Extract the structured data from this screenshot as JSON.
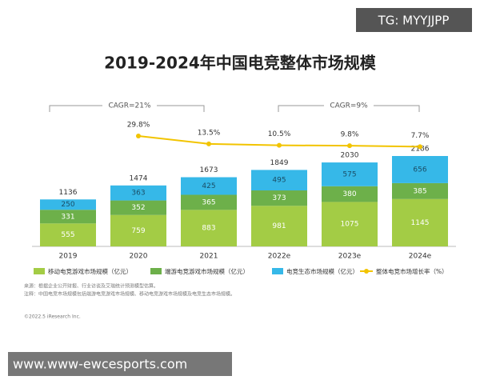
{
  "chart_data": {
    "type": "stacked-bar-line",
    "title": "2019-2024年中国电竞整体市场规模",
    "categories": [
      "2019",
      "2020",
      "2021",
      "2022e",
      "2023e",
      "2024e"
    ],
    "series": [
      {
        "name": "移动电竞游戏市场规模（亿元）",
        "color": "#a3cc45",
        "values": [
          555,
          759,
          883,
          981,
          1075,
          1145
        ]
      },
      {
        "name": "端游电竞游戏市场规模（亿元）",
        "color": "#6db04a",
        "values": [
          331,
          352,
          365,
          373,
          380,
          385
        ]
      },
      {
        "name": "电竞生态市场规模（亿元）",
        "color": "#36b8e8",
        "values": [
          250,
          363,
          425,
          495,
          575,
          656
        ]
      }
    ],
    "totals": [
      1136,
      1474,
      1673,
      1849,
      2030,
      2186
    ],
    "growth": {
      "name": "整体电竞市场增长率（%）",
      "color": "#f2c400",
      "values": [
        null,
        29.8,
        13.5,
        10.5,
        9.8,
        7.7
      ],
      "value_labels": [
        null,
        "29.8%",
        "13.5%",
        "10.5%",
        "9.8%",
        "7.7%"
      ]
    },
    "annotations": [
      "CAGR=21%",
      "CAGR=9%"
    ],
    "footnotes": [
      "来源：根据企业公开财报、行业访谈及艾瑞统计预测模型估算。",
      "注释：中国电竞市场规模包括端游电竞游戏市场规模、移动电竞游戏市场规模及电竞生态市场规模。",
      "©2022.5 iResearch Inc."
    ]
  },
  "overlays": {
    "top_tag": "TG: MYYJJPP",
    "bottom_url": "www.www-ewcesports.com"
  }
}
